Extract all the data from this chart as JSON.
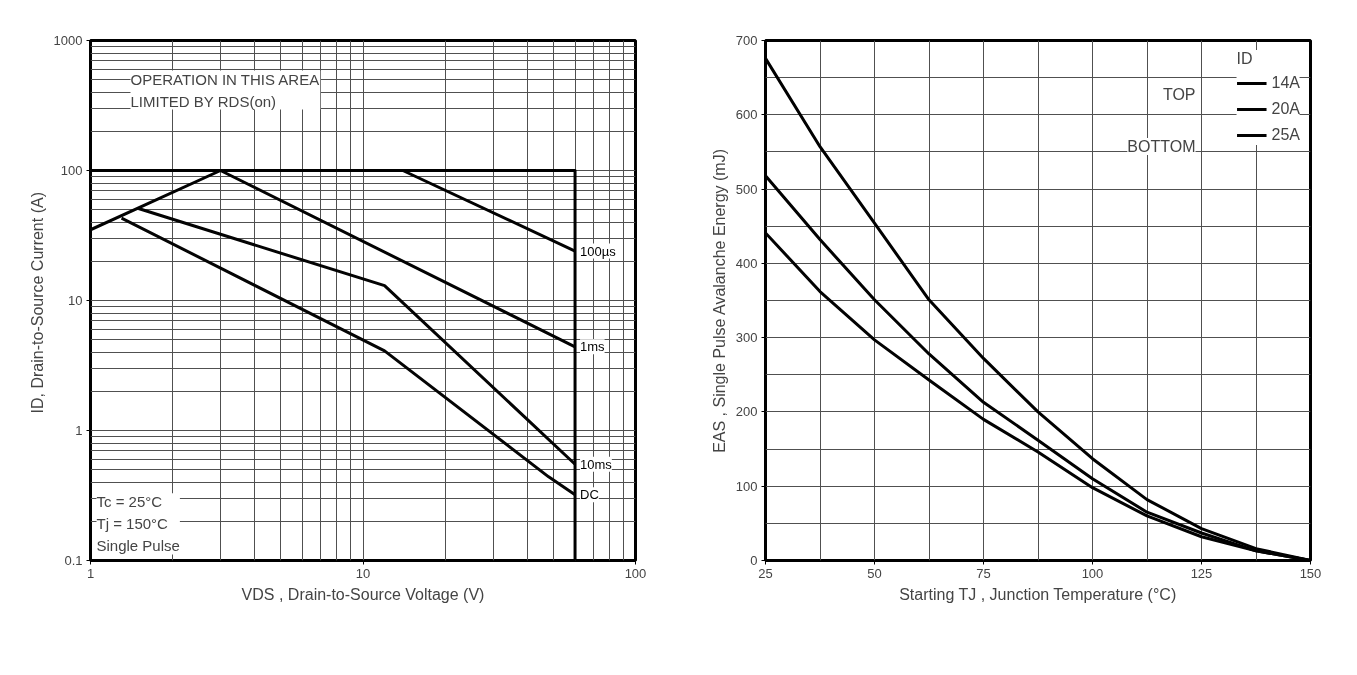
{
  "chart_data": [
    {
      "type": "line",
      "log": "xy",
      "grid": true,
      "legend": false,
      "xlabel": "VDS , Drain-to-Source Voltage (V)",
      "ylabel": "ID,  Drain-to-Source Current (A)",
      "xlim": [
        1,
        100
      ],
      "ylim": [
        0.1,
        1000
      ],
      "xticks": [
        1,
        {
          "value": 2,
          "label": null
        },
        {
          "value": 3,
          "label": null
        },
        {
          "value": 4,
          "label": null
        },
        {
          "value": 5,
          "label": null
        },
        {
          "value": 6,
          "label": null
        },
        {
          "value": 7,
          "label": null
        },
        {
          "value": 8,
          "label": null
        },
        {
          "value": 9,
          "label": null
        },
        10,
        {
          "value": 20,
          "label": null
        },
        {
          "value": 30,
          "label": null
        },
        {
          "value": 40,
          "label": null
        },
        {
          "value": 50,
          "label": null
        },
        {
          "value": 60,
          "label": null
        },
        {
          "value": 70,
          "label": null
        },
        {
          "value": 80,
          "label": null
        },
        {
          "value": 90,
          "label": null
        },
        100
      ],
      "yticks": [
        0.1,
        {
          "value": 0.2,
          "label": null
        },
        {
          "value": 0.3,
          "label": null
        },
        {
          "value": 0.4,
          "label": null
        },
        {
          "value": 0.5,
          "label": null
        },
        {
          "value": 0.6,
          "label": null
        },
        {
          "value": 0.7,
          "label": null
        },
        {
          "value": 0.8,
          "label": null
        },
        {
          "value": 0.9,
          "label": null
        },
        1,
        {
          "value": 2,
          "label": null
        },
        {
          "value": 3,
          "label": null
        },
        {
          "value": 4,
          "label": null
        },
        {
          "value": 5,
          "label": null
        },
        {
          "value": 6,
          "label": null
        },
        {
          "value": 7,
          "label": null
        },
        {
          "value": 8,
          "label": null
        },
        {
          "value": 9,
          "label": null
        },
        10,
        {
          "value": 20,
          "label": null
        },
        {
          "value": 30,
          "label": null
        },
        {
          "value": 40,
          "label": null
        },
        {
          "value": 50,
          "label": null
        },
        {
          "value": 60,
          "label": null
        },
        {
          "value": 70,
          "label": null
        },
        {
          "value": 80,
          "label": null
        },
        {
          "value": 90,
          "label": null
        },
        100,
        {
          "value": 200,
          "label": null
        },
        {
          "value": 300,
          "label": null
        },
        {
          "value": 400,
          "label": null
        },
        {
          "value": 500,
          "label": null
        },
        {
          "value": 600,
          "label": null
        },
        {
          "value": 700,
          "label": null
        },
        {
          "value": 800,
          "label": null
        },
        {
          "value": 900,
          "label": null
        },
        1000
      ],
      "series": [
        {
          "color": "#000000",
          "x": [
            1,
            60,
            60
          ],
          "values": [
            100,
            100,
            0.1
          ]
        },
        {
          "name": "100µs",
          "color": "#010101",
          "x": [
            14,
            60
          ],
          "values": [
            100,
            24
          ]
        },
        {
          "name": "1ms",
          "color": "#020202",
          "x": [
            1,
            3,
            60
          ],
          "values": [
            35,
            100,
            4.4
          ]
        },
        {
          "name": "10ms",
          "color": "#030303",
          "x": [
            1.5,
            12,
            60
          ],
          "values": [
            51,
            13,
            0.55
          ]
        },
        {
          "name": "DC",
          "color": "#040404",
          "x": [
            1.3,
            12,
            48,
            60
          ],
          "values": [
            43,
            4.1,
            0.44,
            0.32
          ]
        }
      ],
      "annotations": [
        "OPERATION IN THIS AREA\nLIMITED BY RDS(on)",
        "Tc = 25°C\nTj = 150°C\nSingle Pulse"
      ]
    },
    {
      "type": "line",
      "grid": true,
      "legend": "top right",
      "legend_title": "ID",
      "xlabel": "Starting TJ , Junction Temperature (°C)",
      "ylabel": "EAS , Single Pulse Avalanche Energy (mJ)",
      "xlim": [
        25,
        150
      ],
      "ylim": [
        0,
        700
      ],
      "xticks": [
        25,
        {
          "value": 37.5,
          "label": null
        },
        50,
        {
          "value": 62.5,
          "label": null
        },
        75,
        {
          "value": 87.5,
          "label": null
        },
        100,
        {
          "value": 112.5,
          "label": null
        },
        125,
        {
          "value": 137.5,
          "label": null
        },
        150
      ],
      "yticks": [
        0,
        {
          "value": 50,
          "label": null
        },
        100,
        {
          "value": 150,
          "label": null
        },
        200,
        {
          "value": 250,
          "label": null
        },
        300,
        {
          "value": 350,
          "label": null
        },
        400,
        {
          "value": 450,
          "label": null
        },
        500,
        {
          "value": 550,
          "label": null
        },
        600,
        {
          "value": 650,
          "label": null
        },
        700
      ],
      "x": [
        25,
        37.5,
        50,
        62.5,
        75,
        87.5,
        100,
        112.5,
        125,
        137.5,
        150
      ],
      "series": [
        {
          "name": "14A",
          "color": "#000000",
          "values": [
            676,
            557,
            454,
            351,
            272,
            200,
            137,
            82,
            43,
            16,
            0
          ]
        },
        {
          "name": "20A",
          "color": "#010101",
          "values": [
            518,
            432,
            351,
            278,
            213,
            162,
            110,
            65,
            37,
            13,
            0
          ]
        },
        {
          "name": "25A",
          "color": "#020202",
          "values": [
            441,
            362,
            297,
            243,
            190,
            146,
            98,
            60,
            32,
            13,
            0
          ]
        }
      ],
      "annotations": [
        "TOP",
        "BOTTOM"
      ]
    }
  ]
}
